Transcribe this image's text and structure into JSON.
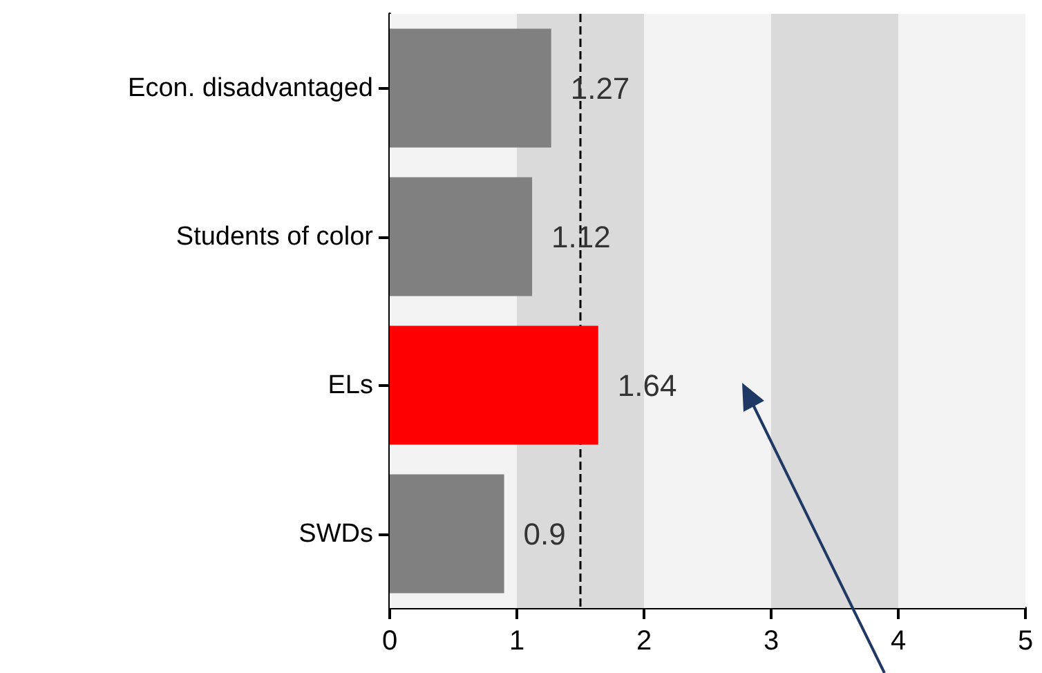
{
  "chart_data": {
    "type": "bar",
    "orientation": "horizontal",
    "categories": [
      "Econ. disadvantaged",
      "Students of color",
      "ELs",
      "SWDs"
    ],
    "values": [
      1.27,
      1.12,
      1.64,
      0.9
    ],
    "colors": [
      "#808080",
      "#808080",
      "#ff0000",
      "#808080"
    ],
    "data_labels": true,
    "xlim": [
      0,
      5
    ],
    "xticks": [
      0,
      1,
      2,
      3,
      4,
      5
    ],
    "grid": false,
    "bands": [
      {
        "axis": "x",
        "from": 0,
        "to": 1,
        "color": "#f3f3f3"
      },
      {
        "axis": "x",
        "from": 1,
        "to": 2,
        "color": "#dadada"
      },
      {
        "axis": "x",
        "from": 2,
        "to": 3,
        "color": "#f3f3f3"
      },
      {
        "axis": "x",
        "from": 3,
        "to": 4,
        "color": "#dadada"
      },
      {
        "axis": "x",
        "from": 4,
        "to": 5,
        "color": "#f3f3f3"
      }
    ],
    "ref_lines": [
      {
        "axis": "x",
        "value": 1.5,
        "color": "#000000",
        "line_style": "dashed"
      }
    ]
  }
}
